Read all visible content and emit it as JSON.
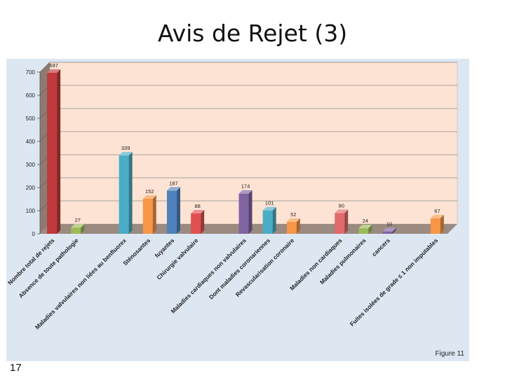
{
  "slide": {
    "title": "Avis de Rejet (3)",
    "figure_label": "Figure 11",
    "page_number": "17"
  },
  "chart_data": {
    "type": "bar",
    "title": "",
    "xlabel": "",
    "ylabel": "",
    "ylim": [
      0,
      700
    ],
    "yticks": [
      0,
      100,
      200,
      300,
      400,
      500,
      600,
      700
    ],
    "grid": true,
    "legend": "none",
    "categories": [
      "Nombre total de rejets",
      "Absence de toute pathologie",
      "",
      "Maladies valvulaires non liées au benfluorex",
      "Sténosantes",
      "fuyantes",
      "Chirurgie valvulaire",
      "",
      "Maladies cardiaques non valvulaires",
      "Dont maladies coronariennes",
      "Revascularisation coronaire",
      "",
      "Maladies non cardiaques",
      "Maladies pulmonaires",
      "cancers",
      "",
      "Fuites isolées de grade ≤ 1 non imputables"
    ],
    "values": [
      697,
      27,
      null,
      339,
      152,
      187,
      88,
      null,
      174,
      101,
      52,
      null,
      90,
      24,
      10,
      null,
      67
    ],
    "colors": [
      "#c0393c",
      "#9bbb59",
      "",
      "#4bacc6",
      "#f79646",
      "#4f81bd",
      "#e05050",
      "",
      "#8064a2",
      "#4bacc6",
      "#f79646",
      "",
      "#e06a6a",
      "#9bbb59",
      "#8064a2",
      "",
      "#f79646"
    ]
  }
}
